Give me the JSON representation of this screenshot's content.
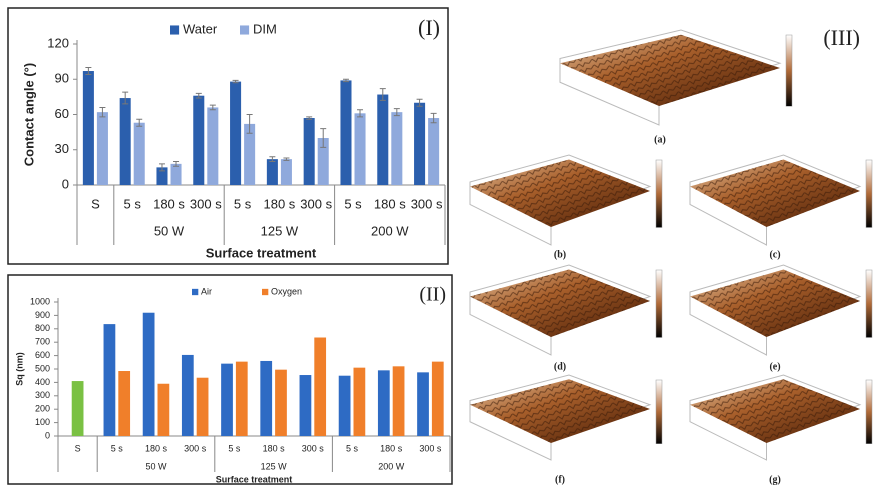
{
  "chart_data": [
    {
      "type": "bar",
      "panel_label": "(I)",
      "y_label": "Contact angle (°)",
      "x_label": "Surface treatment",
      "categories": [
        "S",
        "5 s",
        "180 s",
        "300 s",
        "5 s",
        "180 s",
        "300 s",
        "5 s",
        "180 s",
        "300 s"
      ],
      "category_groups": [
        null,
        "50 W",
        "50 W",
        "50 W",
        "125 W",
        "125 W",
        "125 W",
        "200 W",
        "200 W",
        "200 W"
      ],
      "series": [
        {
          "name": "Water",
          "color": "#2b5fad",
          "values": [
            97,
            74,
            15,
            76,
            88,
            22,
            57,
            89,
            77,
            70
          ],
          "errors": [
            3,
            5,
            3,
            2,
            1,
            2,
            1,
            1,
            5,
            3
          ]
        },
        {
          "name": "DIM",
          "color": "#8fa9dc",
          "values": [
            62,
            53,
            18,
            66,
            52,
            22,
            40,
            61,
            62,
            57
          ],
          "errors": [
            4,
            3,
            2,
            2,
            8,
            1,
            8,
            3,
            3,
            4
          ]
        }
      ],
      "ylim": [
        0,
        120
      ],
      "yticks": [
        0,
        30,
        60,
        90,
        120
      ],
      "legend": "top"
    },
    {
      "type": "bar",
      "panel_label": "(II)",
      "y_label": "Sq (nm)",
      "x_label": "Surface treatment",
      "categories": [
        "S",
        "5 s",
        "180 s",
        "300 s",
        "5 s",
        "180 s",
        "300 s",
        "5 s",
        "180 s",
        "300 s"
      ],
      "category_groups": [
        null,
        "50 W",
        "50 W",
        "50 W",
        "125 W",
        "125 W",
        "125 W",
        "200 W",
        "200 W",
        "200 W"
      ],
      "series": [
        {
          "color": "#7ac143",
          "values": [
            410,
            null,
            null,
            null,
            null,
            null,
            null,
            null,
            null,
            null
          ]
        },
        {
          "name": "Air",
          "color": "#2e6bc4",
          "values": [
            null,
            835,
            920,
            605,
            540,
            560,
            455,
            450,
            490,
            475
          ]
        },
        {
          "name": "Oxygen",
          "color": "#f07f2a",
          "values": [
            null,
            485,
            390,
            435,
            555,
            495,
            735,
            510,
            520,
            555
          ]
        }
      ],
      "ylim": [
        0,
        1000
      ],
      "yticks": [
        0,
        100,
        200,
        300,
        400,
        500,
        600,
        700,
        800,
        900,
        1000
      ],
      "legend": "top"
    }
  ],
  "images": {
    "panel_label": "(III)",
    "captions": [
      "(a)",
      "(b)",
      "(c)",
      "(d)",
      "(e)",
      "(f)",
      "(g)"
    ]
  }
}
